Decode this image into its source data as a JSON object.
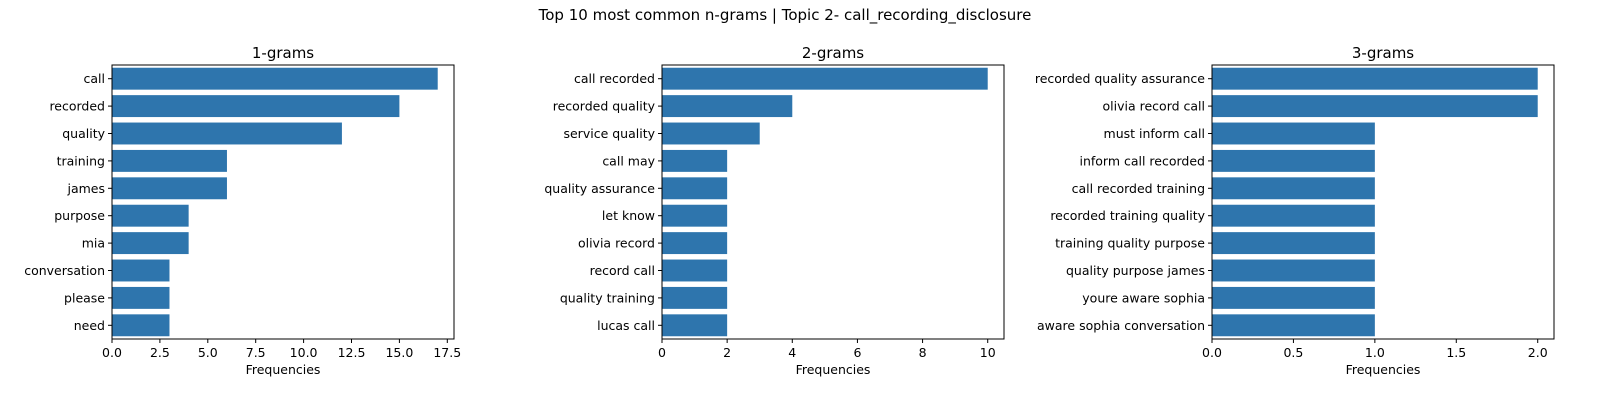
{
  "suptitle": "Top 10 most common n-grams | Topic 2- call_recording_disclosure",
  "bar_color": "#2e75ad",
  "chart_data": [
    {
      "type": "bar",
      "orientation": "horizontal",
      "title": "1-grams",
      "xlabel": "Frequencies",
      "ylabel": "",
      "xlim": [
        0,
        17.85
      ],
      "xticks": [
        0,
        2.5,
        5,
        7.5,
        10,
        12.5,
        15,
        17.5
      ],
      "xtick_labels": [
        "0.0",
        "2.5",
        "5.0",
        "7.5",
        "10.0",
        "12.5",
        "15.0",
        "17.5"
      ],
      "categories": [
        "call",
        "recorded",
        "quality",
        "training",
        "james",
        "purpose",
        "mia",
        "conversation",
        "please",
        "need"
      ],
      "values": [
        17,
        15,
        12,
        6,
        6,
        4,
        4,
        3,
        3,
        3
      ]
    },
    {
      "type": "bar",
      "orientation": "horizontal",
      "title": "2-grams",
      "xlabel": "Frequencies",
      "ylabel": "",
      "xlim": [
        0,
        10.5
      ],
      "xticks": [
        0,
        2,
        4,
        6,
        8,
        10
      ],
      "xtick_labels": [
        "0",
        "2",
        "4",
        "6",
        "8",
        "10"
      ],
      "categories": [
        "call recorded",
        "recorded quality",
        "service quality",
        "call may",
        "quality assurance",
        "let know",
        "olivia record",
        "record call",
        "quality training",
        "lucas call"
      ],
      "values": [
        10,
        4,
        3,
        2,
        2,
        2,
        2,
        2,
        2,
        2
      ]
    },
    {
      "type": "bar",
      "orientation": "horizontal",
      "title": "3-grams",
      "xlabel": "Frequencies",
      "ylabel": "",
      "xlim": [
        0,
        2.1
      ],
      "xticks": [
        0,
        0.5,
        1,
        1.5,
        2
      ],
      "xtick_labels": [
        "0.0",
        "0.5",
        "1.0",
        "1.5",
        "2.0"
      ],
      "categories": [
        "recorded quality assurance",
        "olivia record call",
        "must inform call",
        "inform call recorded",
        "call recorded training",
        "recorded training quality",
        "training quality purpose",
        "quality purpose james",
        "youre aware sophia",
        "aware sophia conversation"
      ],
      "values": [
        2,
        2,
        1,
        1,
        1,
        1,
        1,
        1,
        1,
        1
      ]
    }
  ]
}
